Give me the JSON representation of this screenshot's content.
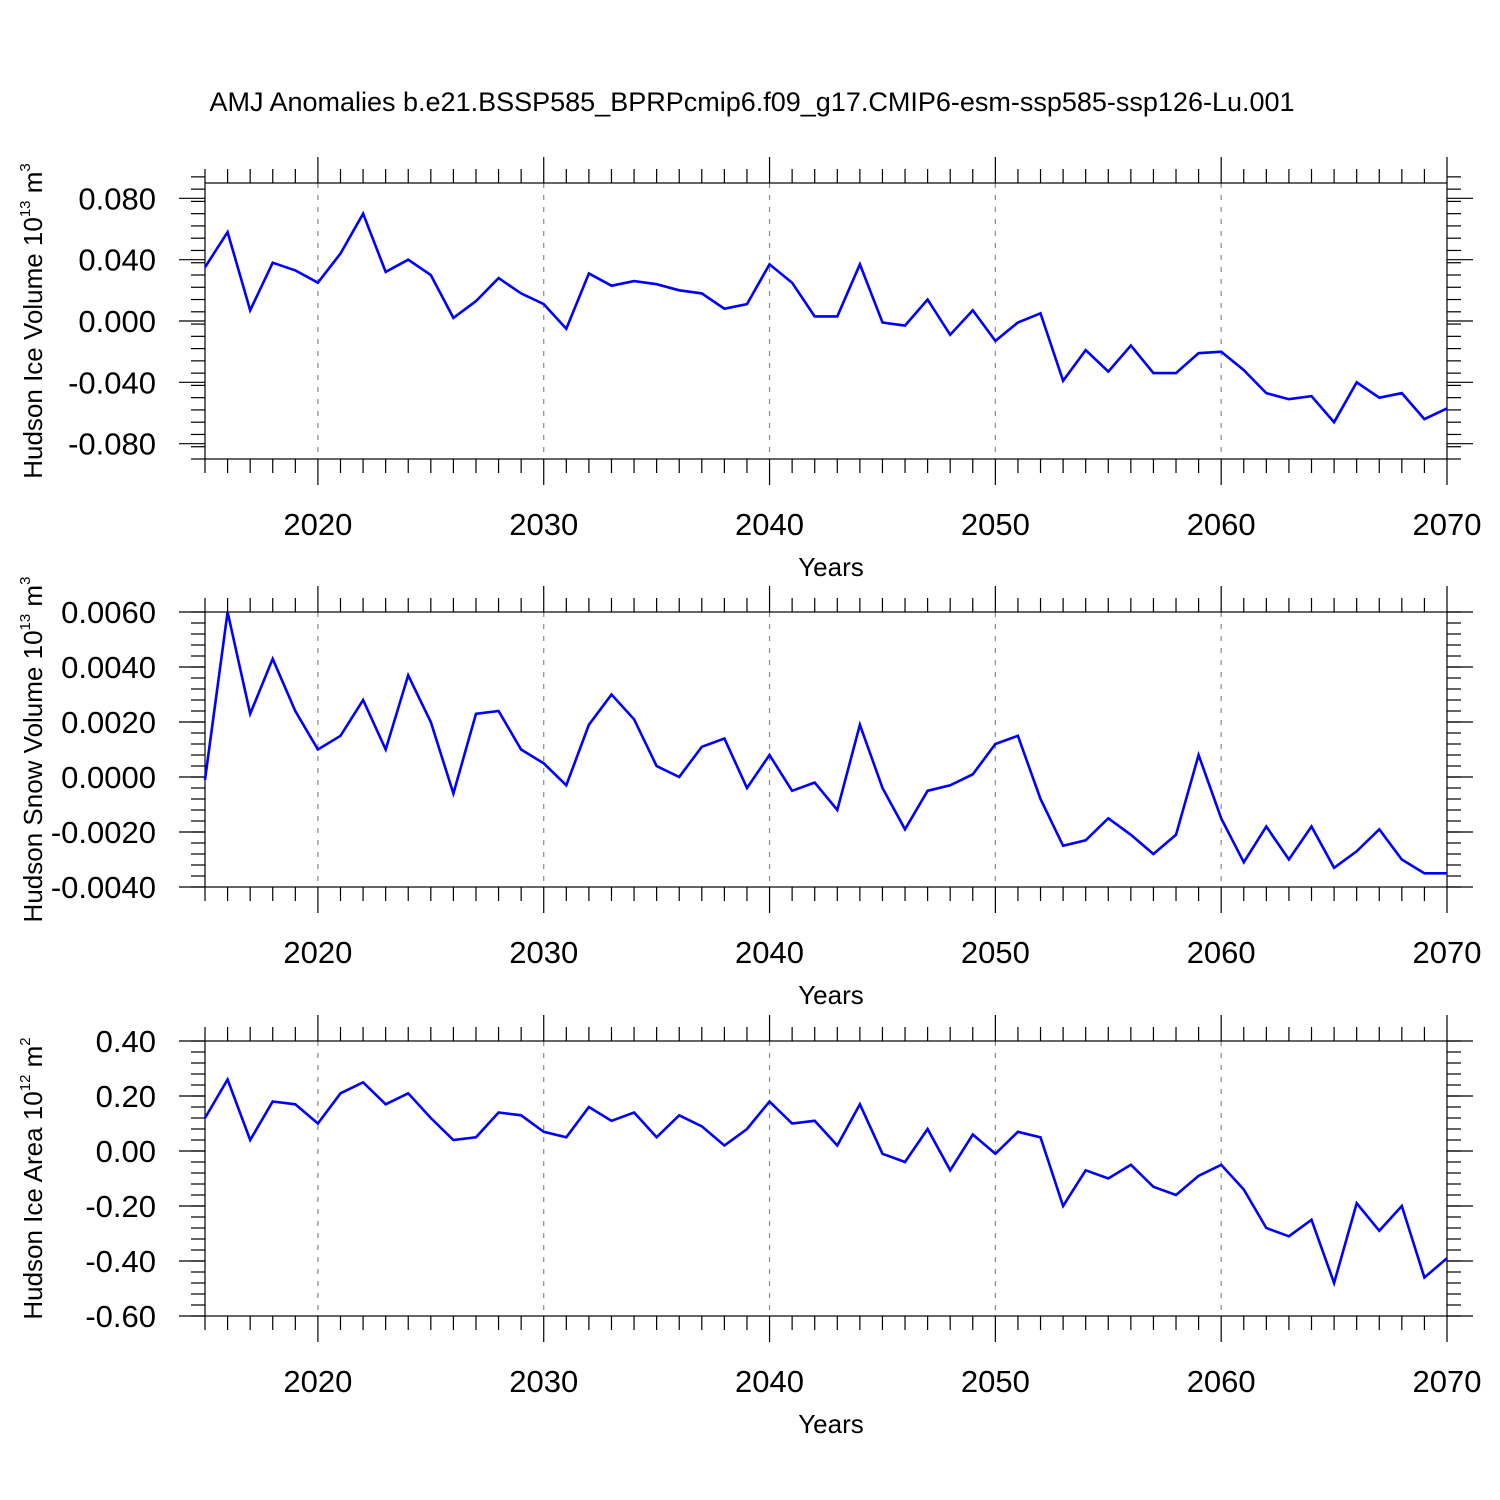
{
  "figure_title": "AMJ Anomalies b.e21.BSSP585_BPRPcmip6.f09_g17.CMIP6-esm-ssp585-ssp126-Lu.001",
  "chart_data": [
    {
      "type": "line",
      "ylabel": "Hudson Ice Volume 10",
      "ylabel_sup": "13",
      "ylabel_unit": " m",
      "ylabel_unit_sup": "3",
      "xlabel": "Years",
      "xlim": [
        2015,
        2070
      ],
      "ylim": [
        -0.09,
        0.09
      ],
      "xticks": [
        2020,
        2030,
        2040,
        2050,
        2060,
        2070
      ],
      "xtick_labels": [
        "2020",
        "2030",
        "2040",
        "2050",
        "2060",
        "2070"
      ],
      "yticks": [
        0.08,
        0.04,
        0.0,
        -0.04,
        -0.08
      ],
      "ytick_labels": [
        "0.080",
        "0.040",
        "0.000",
        "-0.040",
        "-0.080"
      ],
      "grid": "vertical dashed at major x ticks",
      "color": "#0000ff",
      "x": [
        2015,
        2016,
        2017,
        2018,
        2019,
        2020,
        2021,
        2022,
        2023,
        2024,
        2025,
        2026,
        2027,
        2028,
        2029,
        2030,
        2031,
        2032,
        2033,
        2034,
        2035,
        2036,
        2037,
        2038,
        2039,
        2040,
        2041,
        2042,
        2043,
        2044,
        2045,
        2046,
        2047,
        2048,
        2049,
        2050,
        2051,
        2052,
        2053,
        2054,
        2055,
        2056,
        2057,
        2058,
        2059,
        2060,
        2061,
        2062,
        2063,
        2064,
        2065,
        2066,
        2067,
        2068,
        2069,
        2070
      ],
      "y": [
        0.035,
        0.058,
        0.007,
        0.038,
        0.033,
        0.025,
        0.044,
        0.07,
        0.032,
        0.04,
        0.03,
        0.002,
        0.013,
        0.028,
        0.018,
        0.011,
        -0.005,
        0.031,
        0.023,
        0.026,
        0.024,
        0.02,
        0.018,
        0.008,
        0.011,
        0.037,
        0.025,
        0.003,
        0.003,
        0.037,
        -0.001,
        -0.003,
        0.014,
        -0.009,
        0.007,
        -0.013,
        -0.001,
        0.005,
        -0.039,
        -0.019,
        -0.033,
        -0.016,
        -0.034,
        -0.034,
        -0.021,
        -0.02,
        -0.032,
        -0.047,
        -0.051,
        -0.049,
        -0.066,
        -0.04,
        -0.05,
        -0.047,
        -0.064,
        -0.057
      ]
    },
    {
      "type": "line",
      "ylabel": "Hudson Snow Volume 10",
      "ylabel_sup": "13",
      "ylabel_unit": " m",
      "ylabel_unit_sup": "3",
      "xlabel": "Years",
      "xlim": [
        2015,
        2070
      ],
      "ylim": [
        -0.004,
        0.006
      ],
      "xticks": [
        2020,
        2030,
        2040,
        2050,
        2060,
        2070
      ],
      "xtick_labels": [
        "2020",
        "2030",
        "2040",
        "2050",
        "2060",
        "2070"
      ],
      "yticks": [
        0.006,
        0.004,
        0.002,
        0.0,
        -0.002,
        -0.004
      ],
      "ytick_labels": [
        "0.0060",
        "0.0040",
        "0.0020",
        "0.0000",
        "-0.0020",
        "-0.0040"
      ],
      "grid": "vertical dashed at major x ticks",
      "color": "#0000ff",
      "x": [
        2015,
        2016,
        2017,
        2018,
        2019,
        2020,
        2021,
        2022,
        2023,
        2024,
        2025,
        2026,
        2027,
        2028,
        2029,
        2030,
        2031,
        2032,
        2033,
        2034,
        2035,
        2036,
        2037,
        2038,
        2039,
        2040,
        2041,
        2042,
        2043,
        2044,
        2045,
        2046,
        2047,
        2048,
        2049,
        2050,
        2051,
        2052,
        2053,
        2054,
        2055,
        2056,
        2057,
        2058,
        2059,
        2060,
        2061,
        2062,
        2063,
        2064,
        2065,
        2066,
        2067,
        2068,
        2069,
        2070
      ],
      "y": [
        -0.0001,
        0.006,
        0.0023,
        0.0043,
        0.0024,
        0.001,
        0.0015,
        0.0028,
        0.001,
        0.0037,
        0.002,
        -0.0006,
        0.0023,
        0.0024,
        0.001,
        0.0005,
        -0.0003,
        0.0019,
        0.003,
        0.0021,
        0.0004,
        0.0,
        0.0011,
        0.0014,
        -0.0004,
        0.0008,
        -0.0005,
        -0.0002,
        -0.0012,
        0.0019,
        -0.0004,
        -0.0019,
        -0.0005,
        -0.0003,
        0.0001,
        0.0012,
        0.0015,
        -0.0008,
        -0.0025,
        -0.0023,
        -0.0015,
        -0.0021,
        -0.0028,
        -0.0021,
        0.0008,
        -0.0015,
        -0.0031,
        -0.0018,
        -0.003,
        -0.0018,
        -0.0033,
        -0.0027,
        -0.0019,
        -0.003,
        -0.0035,
        -0.0035
      ]
    },
    {
      "type": "line",
      "ylabel": "Hudson Ice Area 10",
      "ylabel_sup": "12",
      "ylabel_unit": " m",
      "ylabel_unit_sup": "2",
      "xlabel": "Years",
      "xlim": [
        2015,
        2070
      ],
      "ylim": [
        -0.6,
        0.4
      ],
      "xticks": [
        2020,
        2030,
        2040,
        2050,
        2060,
        2070
      ],
      "xtick_labels": [
        "2020",
        "2030",
        "2040",
        "2050",
        "2060",
        "2070"
      ],
      "yticks": [
        0.4,
        0.2,
        0.0,
        -0.2,
        -0.4,
        -0.6
      ],
      "ytick_labels": [
        "0.40",
        "0.20",
        "0.00",
        "-0.20",
        "-0.40",
        "-0.60"
      ],
      "grid": "vertical dashed at major x ticks",
      "color": "#0000ff",
      "x": [
        2015,
        2016,
        2017,
        2018,
        2019,
        2020,
        2021,
        2022,
        2023,
        2024,
        2025,
        2026,
        2027,
        2028,
        2029,
        2030,
        2031,
        2032,
        2033,
        2034,
        2035,
        2036,
        2037,
        2038,
        2039,
        2040,
        2041,
        2042,
        2043,
        2044,
        2045,
        2046,
        2047,
        2048,
        2049,
        2050,
        2051,
        2052,
        2053,
        2054,
        2055,
        2056,
        2057,
        2058,
        2059,
        2060,
        2061,
        2062,
        2063,
        2064,
        2065,
        2066,
        2067,
        2068,
        2069,
        2070
      ],
      "y": [
        0.12,
        0.26,
        0.04,
        0.18,
        0.17,
        0.1,
        0.21,
        0.25,
        0.17,
        0.21,
        0.12,
        0.04,
        0.05,
        0.14,
        0.13,
        0.07,
        0.05,
        0.16,
        0.11,
        0.14,
        0.05,
        0.13,
        0.09,
        0.02,
        0.08,
        0.18,
        0.1,
        0.11,
        0.02,
        0.17,
        -0.01,
        -0.04,
        0.08,
        -0.07,
        0.06,
        -0.01,
        0.07,
        0.05,
        -0.2,
        -0.07,
        -0.1,
        -0.05,
        -0.13,
        -0.16,
        -0.09,
        -0.05,
        -0.14,
        -0.28,
        -0.31,
        -0.25,
        -0.48,
        -0.19,
        -0.29,
        -0.2,
        -0.46,
        -0.39
      ]
    }
  ]
}
